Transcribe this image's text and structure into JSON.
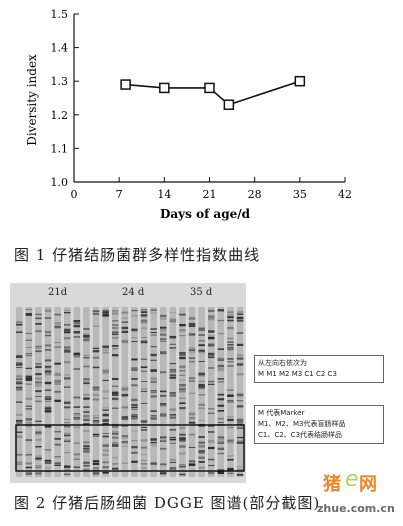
{
  "chart_data": {
    "type": "line",
    "xlabel": "Days of age/d",
    "ylabel": "Diversity index",
    "xlim": [
      0,
      42
    ],
    "ylim": [
      1.0,
      1.5
    ],
    "xticks": [
      "0",
      "7",
      "14",
      "21",
      "28",
      "35",
      "42"
    ],
    "yticks": [
      "1.0",
      "1.1",
      "1.2",
      "1.3",
      "1.4",
      "1.5"
    ],
    "x": [
      8,
      14,
      21,
      24,
      35
    ],
    "y": [
      1.29,
      1.28,
      1.28,
      1.23,
      1.3
    ],
    "marker": "square",
    "grid": false,
    "line_color": "#111111"
  },
  "captions": {
    "fig1": "图 1   仔猪结肠菌群多样性指数曲线",
    "fig2": "图 2 仔猪后肠细菌 DGGE 图谱(部分截图)"
  },
  "gel": {
    "lane_groups": [
      "21d",
      "24 d",
      "35 d"
    ],
    "legend_order_title": "从左向右依次为",
    "legend_order": "M  M1  M2  M3  C1  C2  C3",
    "legend_marker": "M 代表Marker",
    "legend_m_groups": "M1、M2、M3代表盲肠样品",
    "legend_c_groups": "C1、C2、C3代表结肠样品"
  },
  "watermark": {
    "brand_cn": "猪",
    "brand_e": "e",
    "brand_cn2": "网",
    "url": "zhue.com.cn"
  }
}
